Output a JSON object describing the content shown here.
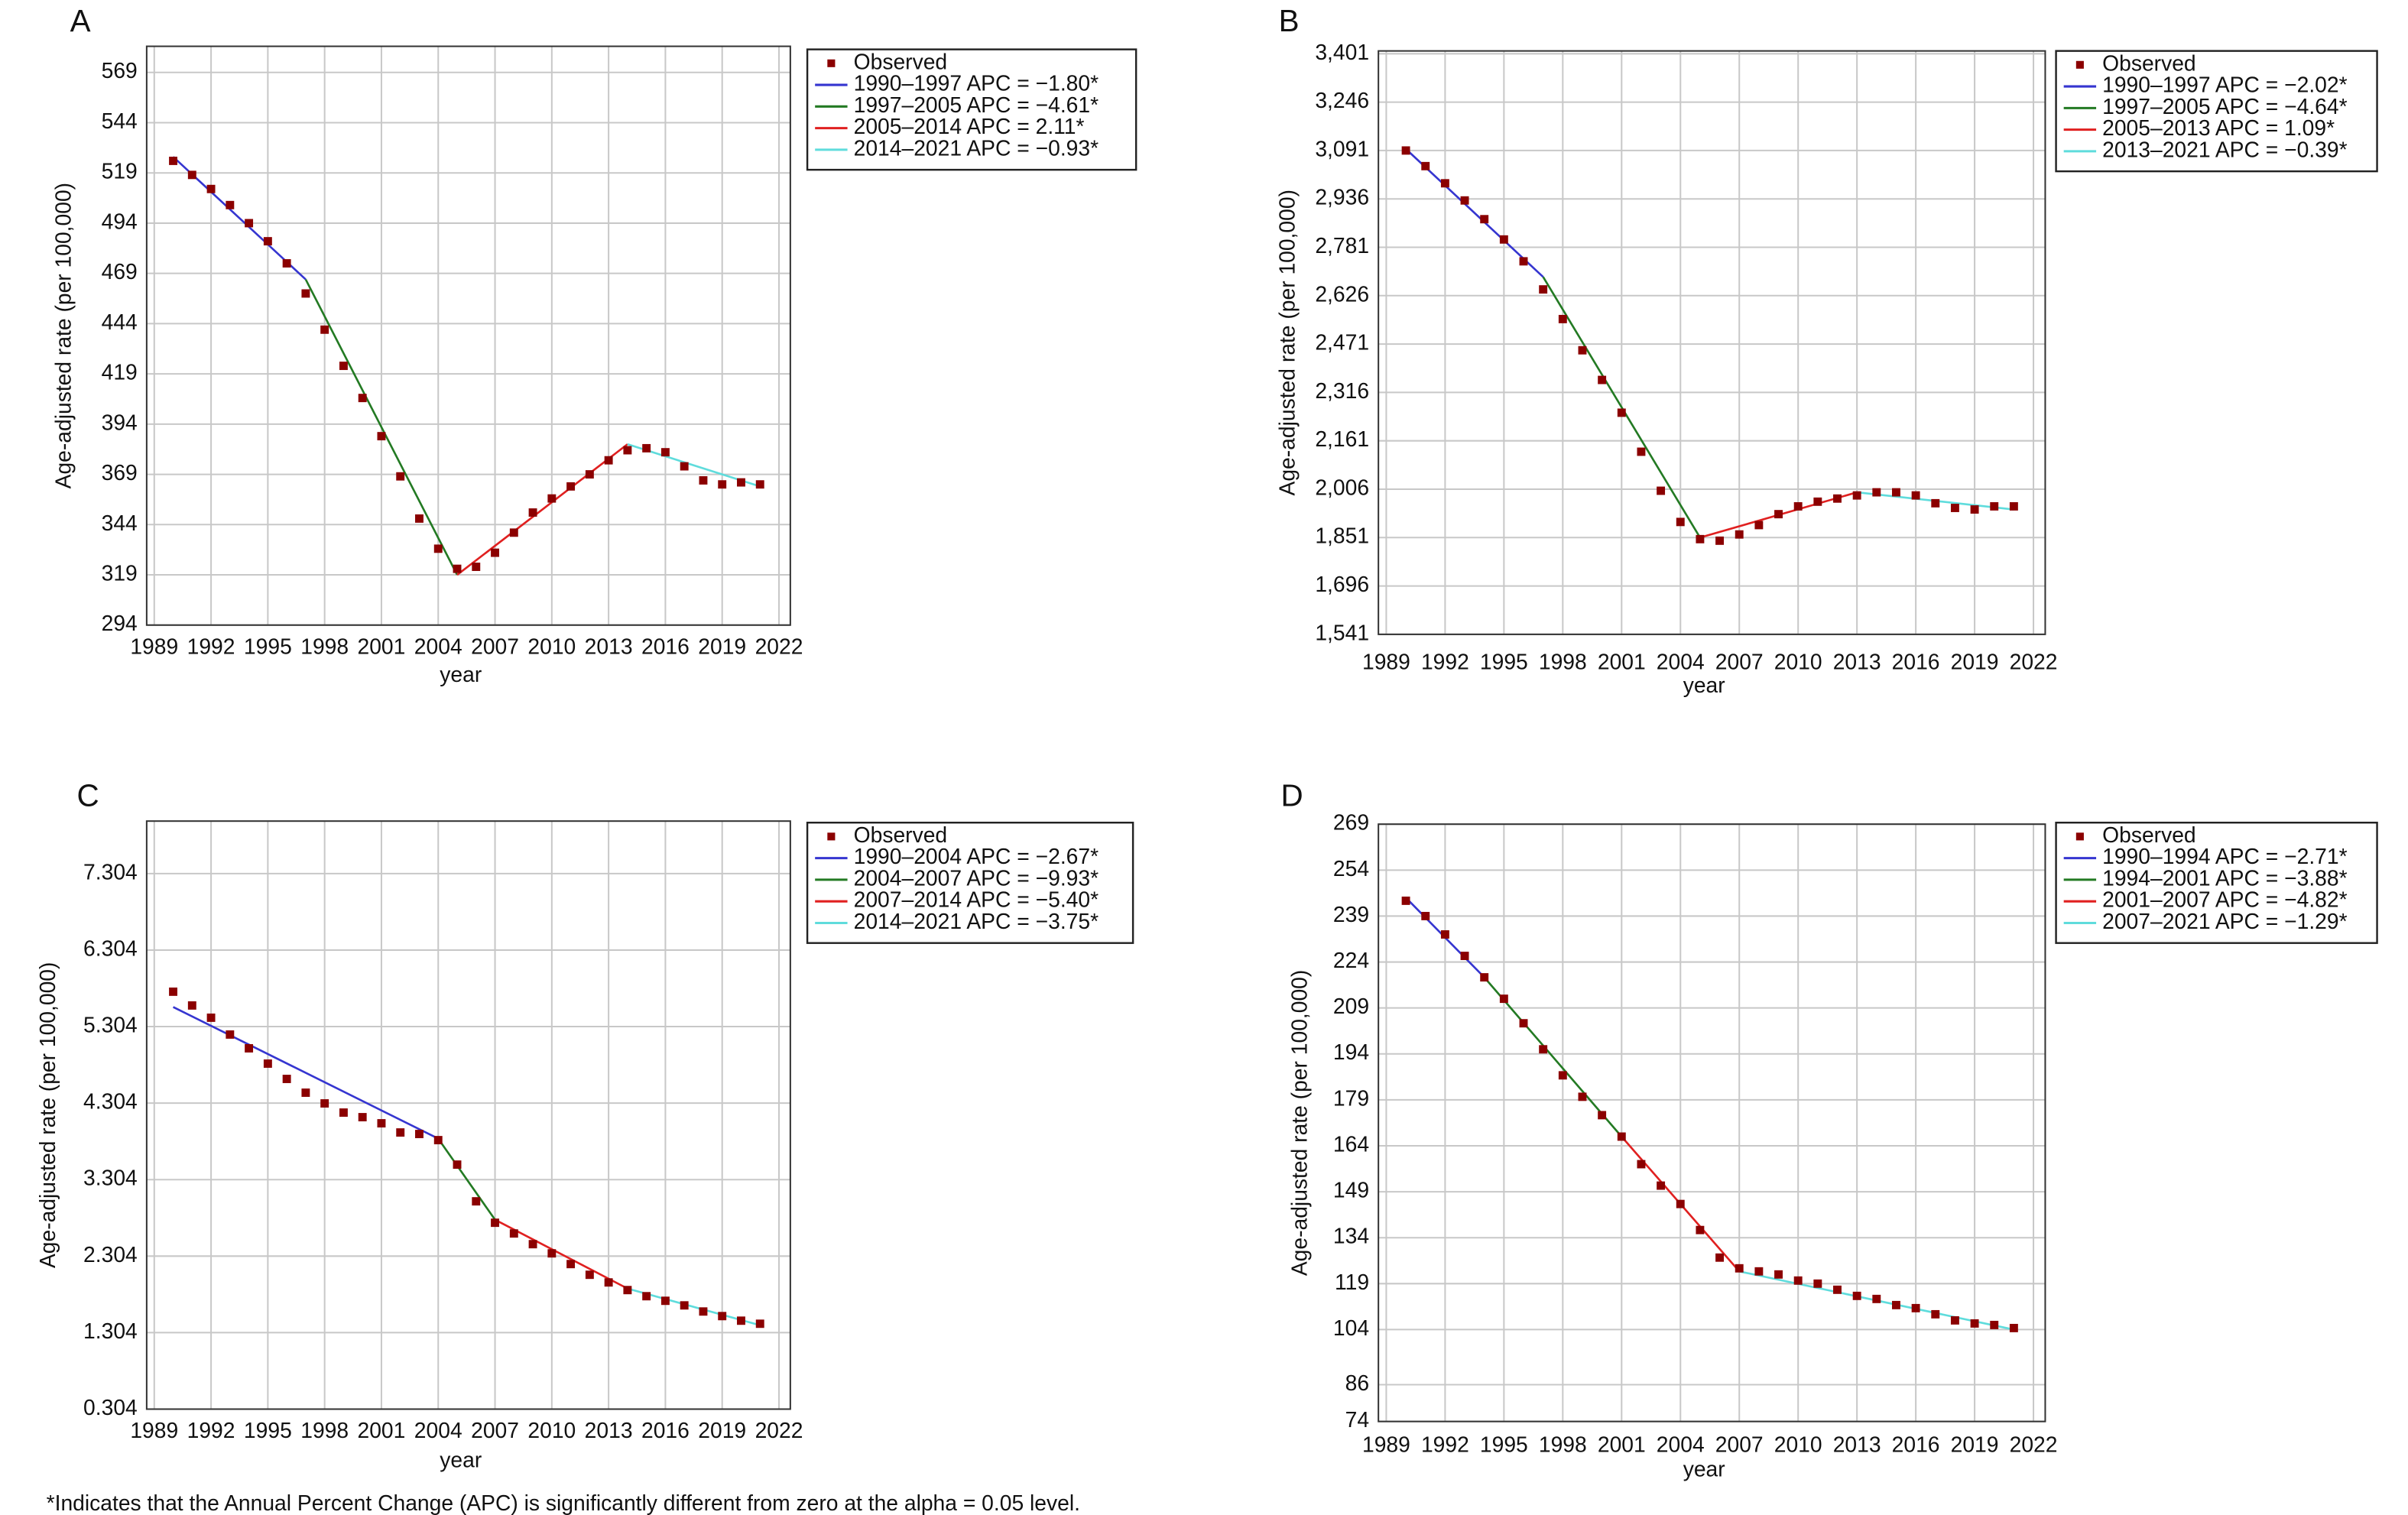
{
  "chart_data": [
    {
      "type": "line",
      "panel": "A",
      "ylabel": "Age-adjusted rate (per 100,000)",
      "xlabel": "year",
      "grid": true,
      "legend": "right",
      "xlim": [
        1988.6,
        2022.6
      ],
      "ylim": [
        294,
        582
      ],
      "xticks": [
        1989,
        1992,
        1995,
        1998,
        2001,
        2004,
        2007,
        2010,
        2013,
        2016,
        2019,
        2022
      ],
      "yticks": [
        294,
        319,
        344,
        369,
        394,
        419,
        444,
        469,
        494,
        519,
        544,
        569
      ],
      "x": [
        1990,
        1991,
        1992,
        1993,
        1994,
        1995,
        1996,
        1997,
        1998,
        1999,
        2000,
        2001,
        2002,
        2003,
        2004,
        2005,
        2006,
        2007,
        2008,
        2009,
        2010,
        2011,
        2012,
        2013,
        2014,
        2015,
        2016,
        2017,
        2018,
        2019,
        2020,
        2021
      ],
      "series": [
        {
          "name": "Observed",
          "color": "#8b0000",
          "marker": "square",
          "values": [
            525,
            518,
            511,
            503,
            494,
            485,
            474,
            459,
            441,
            423,
            407,
            388,
            368,
            347,
            332,
            322,
            323,
            330,
            340,
            350,
            357,
            363,
            369,
            376,
            381,
            382,
            380,
            373,
            366,
            364,
            365,
            364
          ]
        },
        {
          "name": "1990–1997 APC = −1.80*",
          "color": "#3535d0",
          "x": [
            1990,
            1997
          ],
          "values": [
            527,
            466
          ]
        },
        {
          "name": "1997–2005 APC = −4.61*",
          "color": "#237a23",
          "x": [
            1997,
            2005
          ],
          "values": [
            466,
            319
          ]
        },
        {
          "name": "2005–2014 APC = 2.11*",
          "color": "#e02020",
          "x": [
            2005,
            2014
          ],
          "values": [
            319,
            384
          ]
        },
        {
          "name": "2014–2021 APC = −0.93*",
          "color": "#5fdcdc",
          "x": [
            2014,
            2021
          ],
          "values": [
            384,
            363
          ]
        }
      ]
    },
    {
      "type": "line",
      "panel": "B",
      "ylabel": "Age-adjusted rate (per 100,000)",
      "xlabel": "year",
      "grid": true,
      "legend": "right",
      "xlim": [
        1988.6,
        2022.6
      ],
      "ylim": [
        1541,
        3410
      ],
      "xticks": [
        1989,
        1992,
        1995,
        1998,
        2001,
        2004,
        2007,
        2010,
        2013,
        2016,
        2019,
        2022
      ],
      "yticks": [
        {
          "value": 1541,
          "label": "1,541"
        },
        {
          "value": 1696,
          "label": "1,696"
        },
        {
          "value": 1851,
          "label": "1,851"
        },
        {
          "value": 2006,
          "label": "2,006"
        },
        {
          "value": 2161,
          "label": "2,161"
        },
        {
          "value": 2316,
          "label": "2,316"
        },
        {
          "value": 2471,
          "label": "2,471"
        },
        {
          "value": 2626,
          "label": "2,626"
        },
        {
          "value": 2781,
          "label": "2,781"
        },
        {
          "value": 2936,
          "label": "2,936"
        },
        {
          "value": 3091,
          "label": "3,091"
        },
        {
          "value": 3246,
          "label": "3,246"
        },
        {
          "value": 3401,
          "label": "3,401"
        }
      ],
      "x": [
        1990,
        1991,
        1992,
        1993,
        1994,
        1995,
        1996,
        1997,
        1998,
        1999,
        2000,
        2001,
        2002,
        2003,
        2004,
        2005,
        2006,
        2007,
        2008,
        2009,
        2010,
        2011,
        2012,
        2013,
        2014,
        2015,
        2016,
        2017,
        2018,
        2019,
        2020,
        2021
      ],
      "series": [
        {
          "name": "Observed",
          "color": "#8b0000",
          "marker": "square",
          "values": [
            3091,
            3041,
            2986,
            2931,
            2871,
            2806,
            2736,
            2646,
            2551,
            2451,
            2356,
            2251,
            2126,
            2001,
            1901,
            1846,
            1841,
            1861,
            1891,
            1926,
            1951,
            1966,
            1976,
            1986,
            1996,
            1996,
            1986,
            1961,
            1946,
            1941,
            1951,
            1951
          ]
        },
        {
          "name": "1990–1997 APC = −2.02*",
          "color": "#3535d0",
          "x": [
            1990,
            1997
          ],
          "values": [
            3096,
            2686
          ]
        },
        {
          "name": "1997–2005 APC = −4.64*",
          "color": "#237a23",
          "x": [
            1997,
            2005
          ],
          "values": [
            2686,
            1851
          ]
        },
        {
          "name": "2005–2013 APC = 1.09*",
          "color": "#e02020",
          "x": [
            2005,
            2013
          ],
          "values": [
            1851,
            1996
          ]
        },
        {
          "name": "2013–2021 APC = −0.39*",
          "color": "#5fdcdc",
          "x": [
            2013,
            2021
          ],
          "values": [
            1996,
            1941
          ]
        }
      ]
    },
    {
      "type": "line",
      "panel": "C",
      "ylabel": "Age-adjusted rate (per 100,000)",
      "xlabel": "year",
      "grid": true,
      "legend": "right",
      "xlim": [
        1988.6,
        2022.6
      ],
      "ylim": [
        0.304,
        7.99
      ],
      "xticks": [
        1989,
        1992,
        1995,
        1998,
        2001,
        2004,
        2007,
        2010,
        2013,
        2016,
        2019,
        2022
      ],
      "yticks": [
        0.304,
        1.304,
        2.304,
        3.304,
        4.304,
        5.304,
        6.304,
        7.304
      ],
      "x": [
        1990,
        1991,
        1992,
        1993,
        1994,
        1995,
        1996,
        1997,
        1998,
        1999,
        2000,
        2001,
        2002,
        2003,
        2004,
        2005,
        2006,
        2007,
        2008,
        2009,
        2010,
        2011,
        2012,
        2013,
        2014,
        2015,
        2016,
        2017,
        2018,
        2019,
        2020,
        2021
      ],
      "series": [
        {
          "name": "Observed",
          "color": "#8b0000",
          "marker": "square",
          "values": [
            5.76,
            5.58,
            5.42,
            5.2,
            5.02,
            4.82,
            4.62,
            4.44,
            4.3,
            4.18,
            4.12,
            4.04,
            3.92,
            3.9,
            3.82,
            3.5,
            3.02,
            2.74,
            2.6,
            2.46,
            2.34,
            2.2,
            2.06,
            1.96,
            1.86,
            1.78,
            1.72,
            1.66,
            1.58,
            1.52,
            1.46,
            1.42
          ]
        },
        {
          "name": "1990–2004 APC = −2.67*",
          "color": "#3535d0",
          "x": [
            1990,
            2004
          ],
          "values": [
            5.56,
            3.84
          ]
        },
        {
          "name": "2004–2007 APC = −9.93*",
          "color": "#237a23",
          "x": [
            2004,
            2007
          ],
          "values": [
            3.84,
            2.78
          ]
        },
        {
          "name": "2007–2014 APC = −5.40*",
          "color": "#e02020",
          "x": [
            2007,
            2014
          ],
          "values": [
            2.78,
            1.88
          ]
        },
        {
          "name": "2014–2021 APC = −3.75*",
          "color": "#5fdcdc",
          "x": [
            2014,
            2021
          ],
          "values": [
            1.88,
            1.4
          ]
        }
      ]
    },
    {
      "type": "line",
      "panel": "D",
      "ylabel": "Age-adjusted rate (per 100,000)",
      "xlabel": "year",
      "grid": true,
      "legend": "right",
      "xlim": [
        1988.6,
        2022.6
      ],
      "ylim": [
        74,
        269
      ],
      "xticks": [
        1989,
        1992,
        1995,
        1998,
        2001,
        2004,
        2007,
        2010,
        2013,
        2016,
        2019,
        2022
      ],
      "yticks": [
        74,
        86,
        104,
        119,
        134,
        149,
        164,
        179,
        194,
        209,
        224,
        239,
        254,
        269
      ],
      "x": [
        1990,
        1991,
        1992,
        1993,
        1994,
        1995,
        1996,
        1997,
        1998,
        1999,
        2000,
        2001,
        2002,
        2003,
        2004,
        2005,
        2006,
        2007,
        2008,
        2009,
        2010,
        2011,
        2012,
        2013,
        2014,
        2015,
        2016,
        2017,
        2018,
        2019,
        2020,
        2021
      ],
      "series": [
        {
          "name": "Observed",
          "color": "#8b0000",
          "marker": "square",
          "values": [
            244,
            239,
            233,
            226,
            219,
            212,
            204,
            195.5,
            187,
            180,
            174,
            167,
            158,
            151,
            145,
            136.5,
            127.5,
            124,
            123,
            122,
            120,
            119,
            117,
            115,
            114,
            112,
            111,
            109,
            107,
            106,
            105.5,
            104.5
          ]
        },
        {
          "name": "1990–1994 APC = −2.71*",
          "color": "#3535d0",
          "x": [
            1990,
            1994
          ],
          "values": [
            245,
            219
          ]
        },
        {
          "name": "1994–2001 APC = −3.88*",
          "color": "#237a23",
          "x": [
            1994,
            2001
          ],
          "values": [
            219,
            167
          ]
        },
        {
          "name": "2001–2007 APC = −4.82*",
          "color": "#e02020",
          "x": [
            2001,
            2007
          ],
          "values": [
            167,
            123
          ]
        },
        {
          "name": "2007–2021 APC = −1.29*",
          "color": "#5fdcdc",
          "x": [
            2007,
            2021
          ],
          "values": [
            123,
            104
          ]
        }
      ]
    }
  ],
  "footnote": "*Indicates that the Annual Percent Change (APC) is significantly different from zero at the alpha = 0.05 level."
}
